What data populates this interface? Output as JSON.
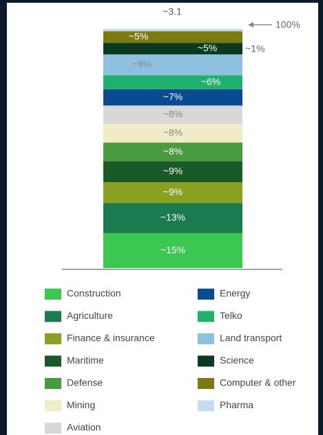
{
  "chart_data": {
    "type": "stacked_bar",
    "title": "~3.1",
    "annotations": [
      "100%"
    ],
    "series": [
      {
        "name": "Construction",
        "color": "#3cc850",
        "values": [
          15
        ],
        "value_labels": [
          "~15%"
        ]
      },
      {
        "name": "Agriculture",
        "color": "#1a7a50",
        "values": [
          13
        ],
        "value_labels": [
          "~13%"
        ]
      },
      {
        "name": "Finance & insurance",
        "color": "#8aa020",
        "values": [
          9
        ],
        "value_labels": [
          "~9%"
        ]
      },
      {
        "name": "Maritime",
        "color": "#1a5a28",
        "values": [
          9
        ],
        "value_labels": [
          "~9%"
        ]
      },
      {
        "name": "Defense",
        "color": "#4a9a40",
        "values": [
          8
        ],
        "value_labels": [
          "~8%"
        ]
      },
      {
        "name": "Mining",
        "color": "#f0ecc8",
        "values": [
          8
        ],
        "value_labels": [
          "~8%"
        ]
      },
      {
        "name": "Aviation",
        "color": "#d8d8d8",
        "values": [
          8
        ],
        "value_labels": [
          "~8%"
        ]
      },
      {
        "name": "Energy",
        "color": "#0a4a90",
        "values": [
          7
        ],
        "value_labels": [
          "~7%"
        ]
      },
      {
        "name": "Telko",
        "color": "#20b070",
        "values": [
          6
        ],
        "value_labels": [
          "~6%"
        ]
      },
      {
        "name": "Land transport",
        "color": "#90c0e0",
        "values": [
          9
        ],
        "value_labels": [
          "~9%"
        ]
      },
      {
        "name": "Science",
        "color": "#0a3a20",
        "values": [
          5
        ],
        "value_labels": [
          "~5%"
        ]
      },
      {
        "name": "Computer & other",
        "color": "#7a7a10",
        "values": [
          5
        ],
        "value_labels": [
          "~5%"
        ]
      },
      {
        "name": "Pharma",
        "color": "#c8dcf0",
        "values": [
          1
        ],
        "value_labels": [
          "~1%"
        ]
      }
    ]
  }
}
